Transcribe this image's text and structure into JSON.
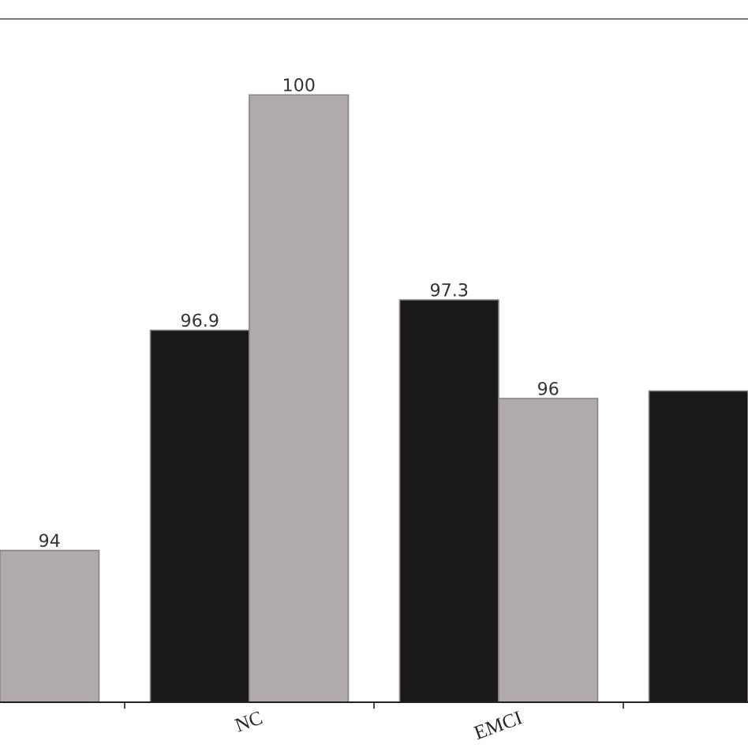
{
  "chart_data": {
    "type": "bar",
    "categories": [
      null,
      "NC",
      "EMCI",
      null
    ],
    "series": [
      {
        "color": "#1a1818",
        "values": [
          null,
          96.9,
          97.3,
          96.1
        ],
        "value_labels": [
          null,
          "96.9",
          "97.3",
          null
        ]
      },
      {
        "color": "#b0a9ad",
        "values": [
          94,
          100,
          96,
          null
        ],
        "value_labels": [
          "94",
          "100",
          "96",
          null
        ]
      }
    ],
    "ylim": [
      92,
      101
    ],
    "tick_labels": "x",
    "grid": false,
    "legend": false
  }
}
